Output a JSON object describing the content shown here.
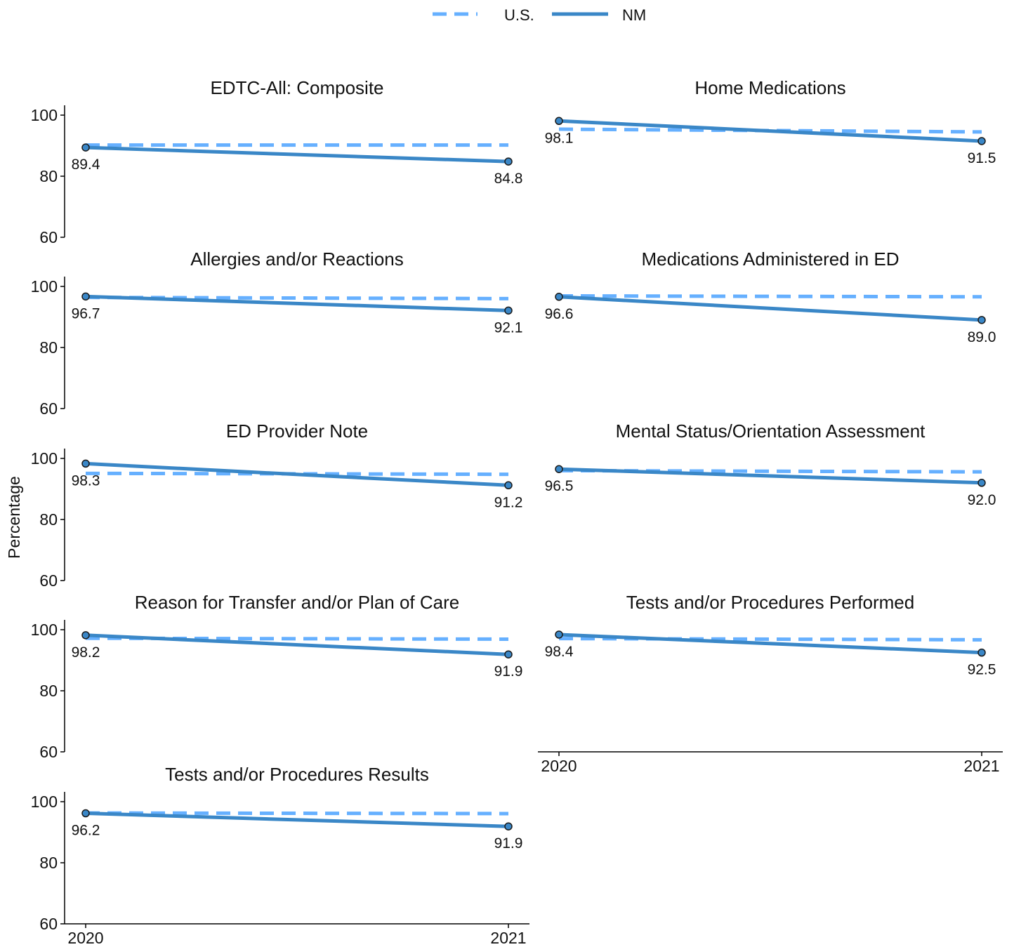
{
  "chart_data": {
    "type": "line",
    "legend": {
      "position": "top",
      "entries": [
        {
          "name": "U.S.",
          "style": "dashed",
          "color": "#66b0ff"
        },
        {
          "name": "NM",
          "style": "solid",
          "color": "#3a87c7"
        }
      ]
    },
    "ylabel": "Percentage",
    "xlabel": "",
    "x": [
      "2020",
      "2021"
    ],
    "ylim": [
      60,
      100
    ],
    "yticks": [
      60,
      80,
      100
    ],
    "grid": false,
    "panels": [
      {
        "title": "EDTC-All: Composite",
        "us": [
          90.2,
          90.2
        ],
        "nm": [
          89.4,
          84.8
        ],
        "nm_labels": [
          "89.4",
          "84.8"
        ]
      },
      {
        "title": "Home Medications",
        "us": [
          95.4,
          94.5
        ],
        "nm": [
          98.1,
          91.5
        ],
        "nm_labels": [
          "98.1",
          "91.5"
        ]
      },
      {
        "title": "Allergies and/or Reactions",
        "us": [
          96.4,
          96.0
        ],
        "nm": [
          96.7,
          92.1
        ],
        "nm_labels": [
          "96.7",
          "92.1"
        ]
      },
      {
        "title": "Medications Administered in ED",
        "us": [
          96.9,
          96.6
        ],
        "nm": [
          96.6,
          89.0
        ],
        "nm_labels": [
          "96.6",
          "89.0"
        ]
      },
      {
        "title": "ED Provider Note",
        "us": [
          95.1,
          94.8
        ],
        "nm": [
          98.3,
          91.2
        ],
        "nm_labels": [
          "98.3",
          "91.2"
        ]
      },
      {
        "title": "Mental Status/Orientation Assessment",
        "us": [
          96.0,
          95.6
        ],
        "nm": [
          96.5,
          92.0
        ],
        "nm_labels": [
          "96.5",
          "92.0"
        ]
      },
      {
        "title": "Reason for Transfer and/or Plan of Care",
        "us": [
          97.2,
          96.9
        ],
        "nm": [
          98.2,
          91.9
        ],
        "nm_labels": [
          "98.2",
          "91.9"
        ]
      },
      {
        "title": "Tests and/or Procedures Performed",
        "us": [
          97.1,
          96.7
        ],
        "nm": [
          98.4,
          92.5
        ],
        "nm_labels": [
          "98.4",
          "92.5"
        ]
      },
      {
        "title": "Tests and/or Procedures Results",
        "us": [
          96.3,
          96.1
        ],
        "nm": [
          96.2,
          91.9
        ],
        "nm_labels": [
          "96.2",
          "91.9"
        ]
      }
    ]
  }
}
